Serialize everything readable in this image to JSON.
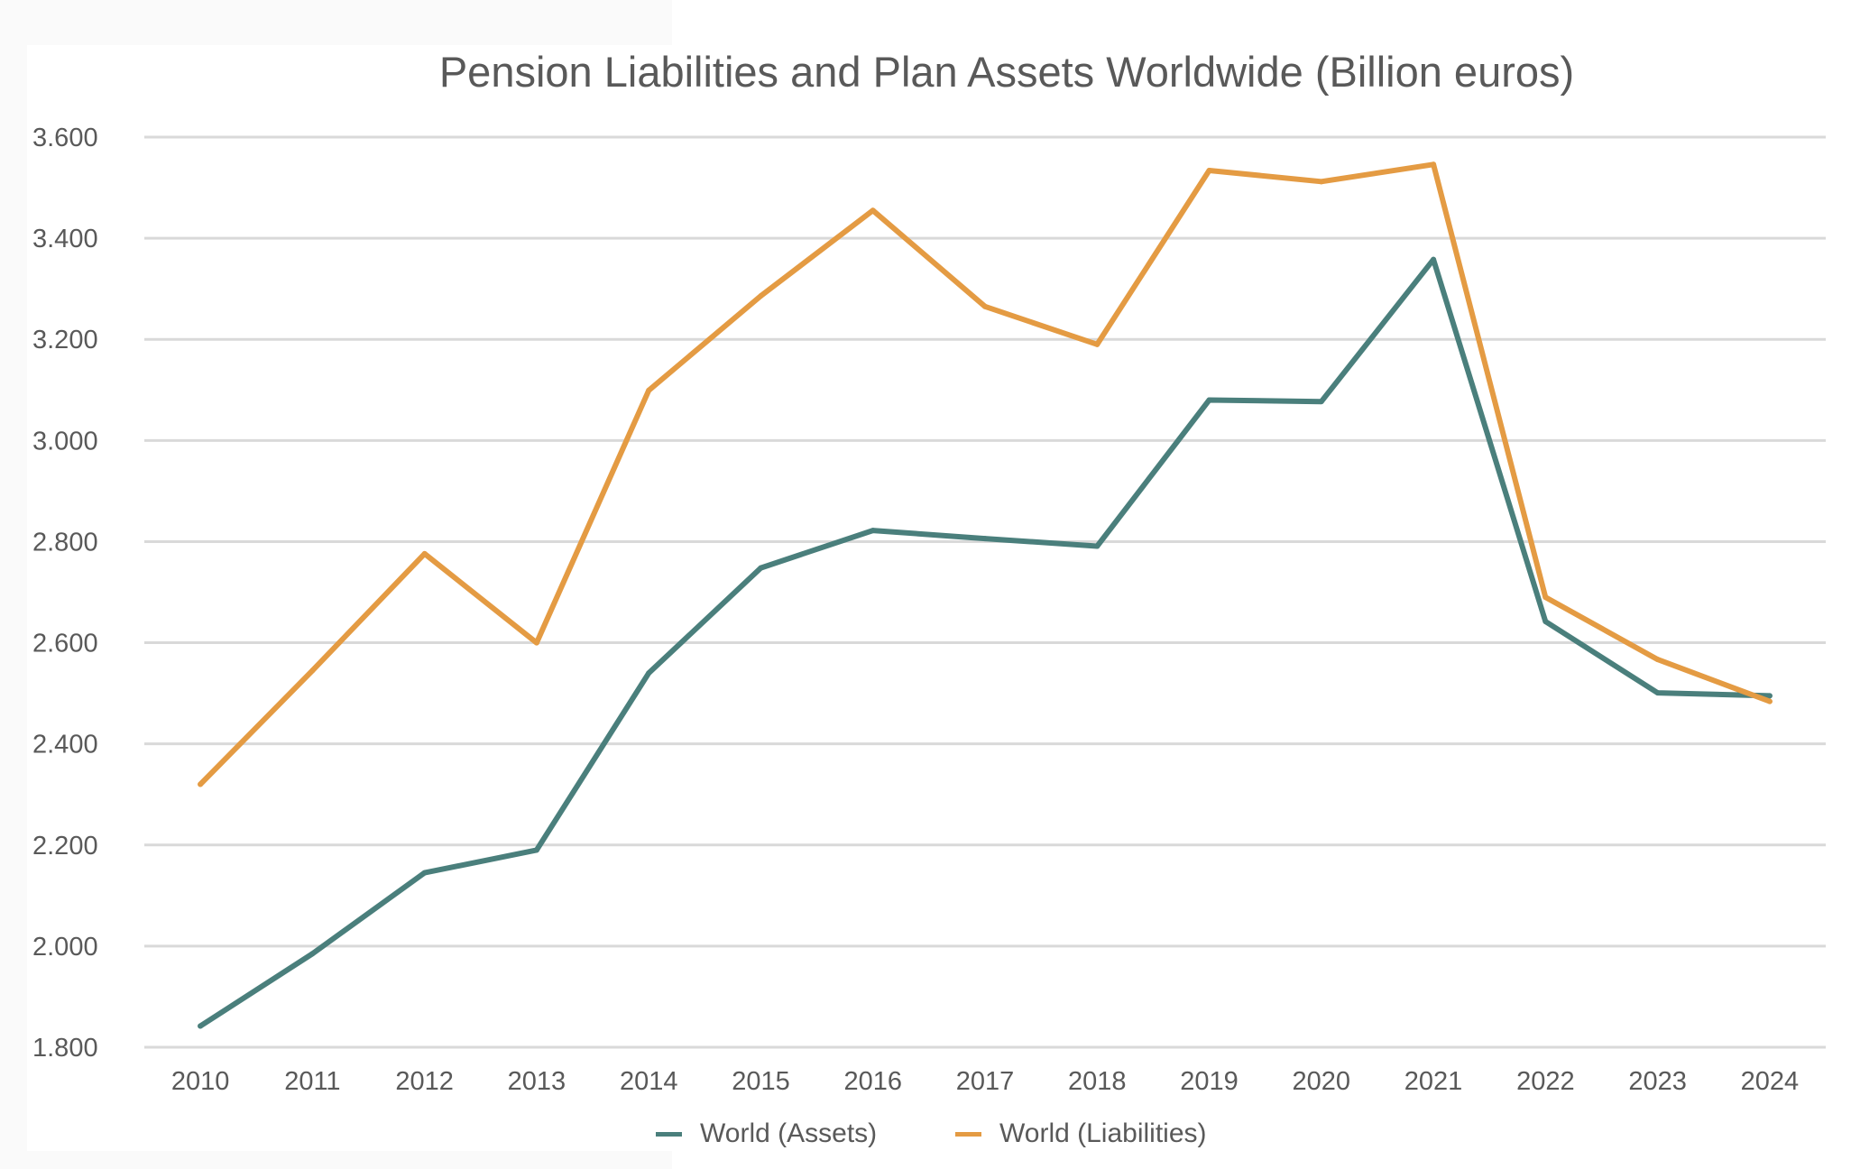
{
  "chart_data": {
    "type": "line",
    "title": "Pension Liabilities and Plan Assets Worldwide (Billion euros)",
    "xlabel": "",
    "ylabel": "",
    "categories": [
      "2010",
      "2011",
      "2012",
      "2013",
      "2014",
      "2015",
      "2016",
      "2017",
      "2018",
      "2019",
      "2020",
      "2021",
      "2022",
      "2023",
      "2024"
    ],
    "ylim": [
      1800,
      3600
    ],
    "ytick_step": 200,
    "ytick_labels": [
      "1.800",
      "2.000",
      "2.200",
      "2.400",
      "2.600",
      "2.800",
      "3.000",
      "3.200",
      "3.400",
      "3.600"
    ],
    "grid": true,
    "legend_position": "bottom",
    "series": [
      {
        "name": "World (Assets)",
        "color": "#4a7f7c",
        "values": [
          1842,
          1985,
          2145,
          2190,
          2540,
          2748,
          2822,
          2806,
          2791,
          3080,
          3077,
          3358,
          2642,
          2501,
          2495
        ]
      },
      {
        "name": "World (Liabilities)",
        "color": "#e49b43",
        "values": [
          2320,
          2545,
          2776,
          2600,
          3099,
          3286,
          3455,
          3265,
          3190,
          3534,
          3512,
          3546,
          2690,
          2567,
          2484
        ]
      }
    ]
  }
}
